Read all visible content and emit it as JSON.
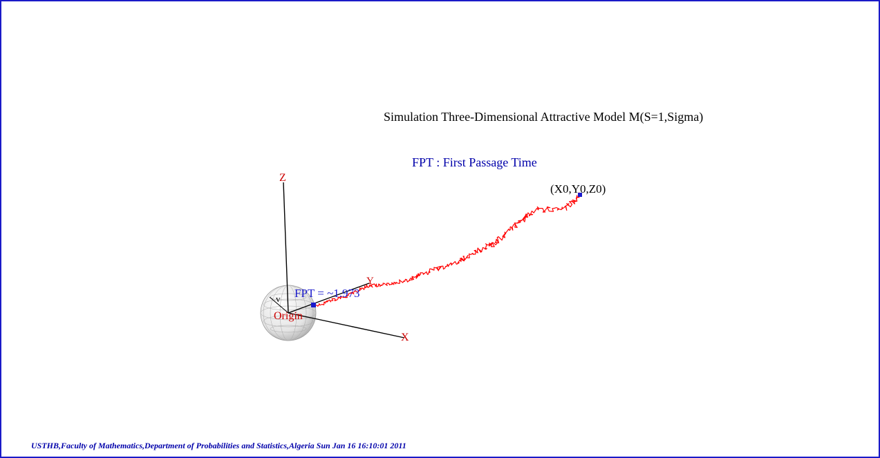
{
  "title": "Simulation Three-Dimensional Attractive Model M(S=1,Sigma)",
  "subtitle": "FPT : First Passage Time",
  "start_label": "(X0,Y0,Z0)",
  "fpt_label": "FPT = ~1.973",
  "origin_label": "Origin",
  "radius_label": "v",
  "axes": {
    "x": "X",
    "y": "Y",
    "z": "Z"
  },
  "footer": "USTHB,Faculty of Mathematics,Department of Probabilities and Statistics,Algeria Sun Jan 16 16:10:01 2011",
  "colors": {
    "frame": "#1a1ac8",
    "path": "#ff0000",
    "axis_labels": "#cc0000",
    "subtitle": "#0000aa",
    "footer": "#0000aa",
    "markers": "#1a1acc",
    "sphere": "#d8d8d8"
  }
}
